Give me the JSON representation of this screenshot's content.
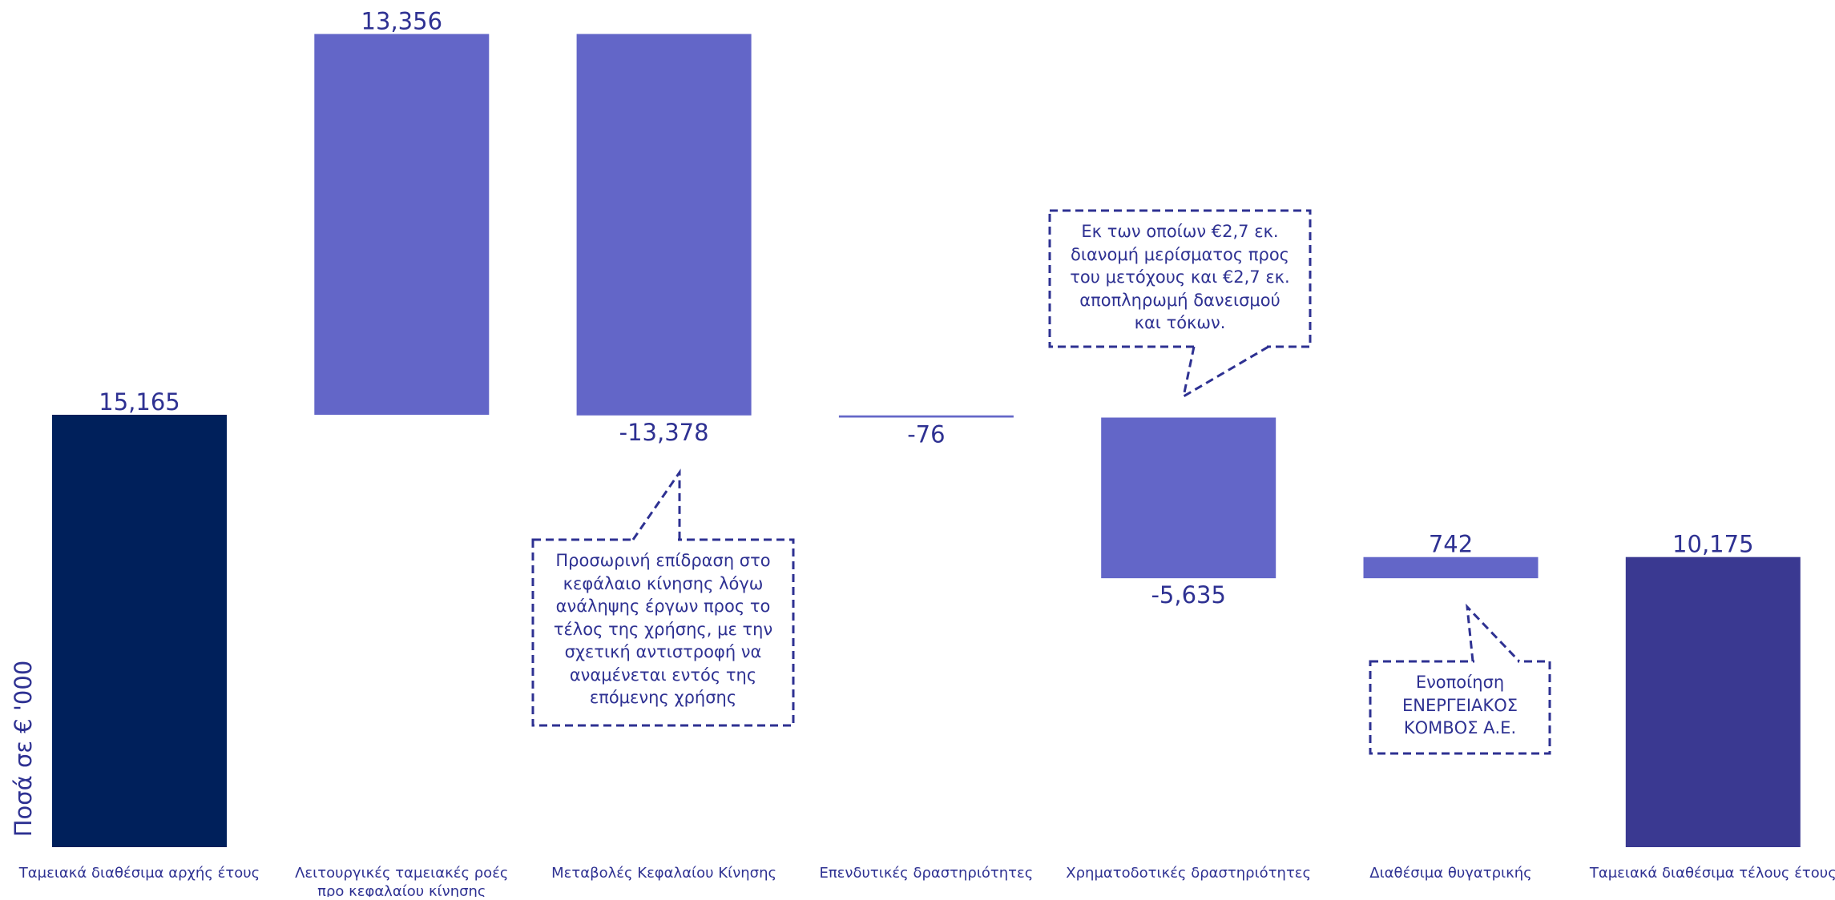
{
  "chart_data": {
    "type": "waterfall",
    "ylabel": "Ποσά σε € '000",
    "categories": [
      "Ταμειακά διαθέσιμα αρχής έτους",
      "Λειτουργικές ταμειακές ροές προ κεφαλαίου κίνησης",
      "Μεταβολές Κεφαλαίου Κίνησης",
      "Επενδυτικές δραστηριότητες",
      "Χρηματοδοτικές δραστηριότητες",
      "Διαθέσιμα θυγατρικής",
      "Ταμειακά διαθέσιμα τέλους έτους"
    ],
    "values": [
      15165,
      13356,
      -13378,
      -76,
      -5635,
      742,
      10175
    ],
    "value_labels": [
      "15,165",
      "13,356",
      "-13,378",
      "-76",
      "-5,635",
      "742",
      "10,175"
    ],
    "bar_kind": [
      "total",
      "delta",
      "delta",
      "delta",
      "delta",
      "delta",
      "total"
    ],
    "colors": {
      "start_total": "#00205b",
      "end_total": "#3a3991",
      "delta": "#6366c8",
      "text": "#2e3192"
    },
    "annotations": [
      {
        "id": "working-capital-note",
        "lines": [
          "Προσωρινή επίδραση στο",
          "κεφάλαιο κίνησης λόγω",
          "ανάληψης έργων προς το",
          "τέλος της χρήσης, με την",
          "σχετική αντιστροφή να",
          "αναμένεται εντός της",
          "επόμενης χρήσης"
        ]
      },
      {
        "id": "financing-note",
        "lines": [
          "Εκ των οποίων €2,7 εκ.",
          "διανομή μερίσματος προς",
          "του μετόχους και €2,7 εκ.",
          "αποπληρωμή δανεισμού",
          "και τόκων."
        ]
      },
      {
        "id": "subsidiary-note",
        "lines": [
          "Ενοποίηση",
          "ΕΝΕΡΓΕΙΑΚΟΣ",
          "ΚΟΜΒΟΣ Α.Ε."
        ]
      }
    ]
  }
}
